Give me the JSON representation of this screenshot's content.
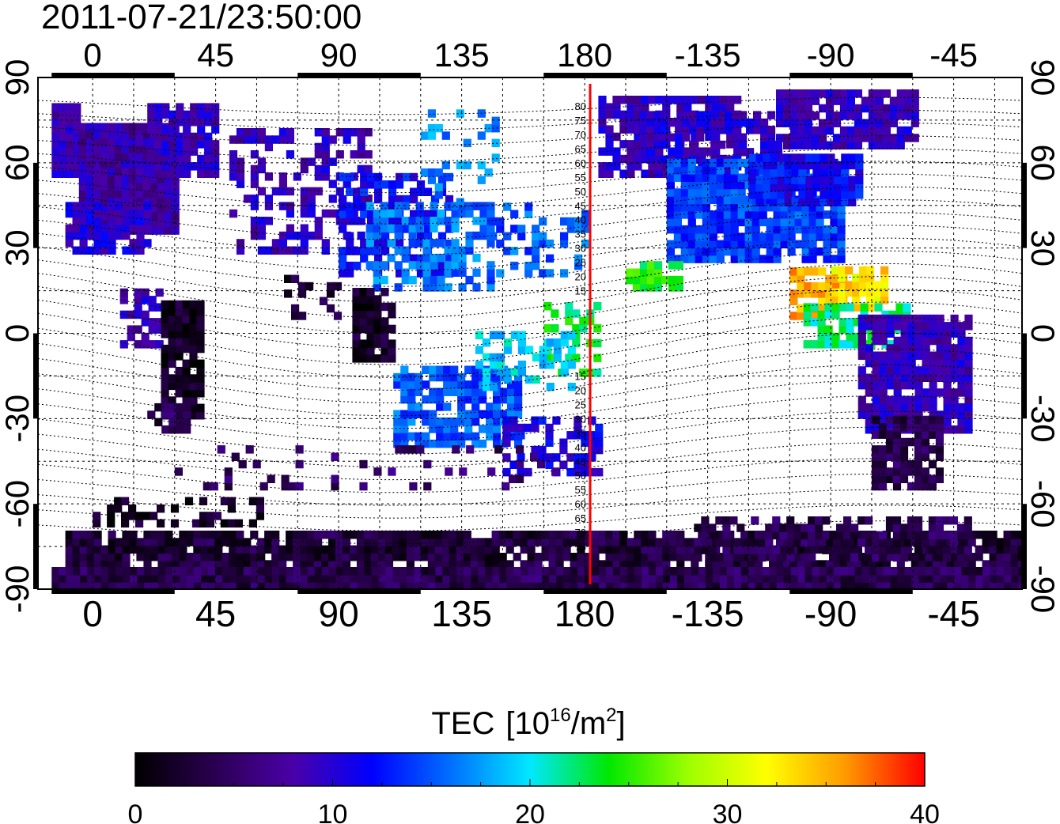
{
  "title": "2011-07-21/23:50:00",
  "map": {
    "lon_ticks": [
      "0",
      "45",
      "90",
      "135",
      "180",
      "-135",
      "-90",
      "-45"
    ],
    "lat_ticks": [
      "90",
      "60",
      "30",
      "0",
      "-30",
      "-60",
      "-90"
    ],
    "lon_range": [
      -20,
      340
    ],
    "lat_range": [
      -90,
      90
    ],
    "meridian_marker": {
      "longitude": 182,
      "color": "#ff0000"
    },
    "meridian_labels": [
      "80",
      "75",
      "70",
      "65",
      "60",
      "55",
      "50",
      "45",
      "40",
      "35",
      "30",
      "25",
      "20",
      "15",
      "15",
      "20",
      "25",
      "30",
      "35",
      "40",
      "45",
      "50",
      "55",
      "60",
      "65",
      "70",
      "75"
    ]
  },
  "colorbar": {
    "label": "TEC",
    "unit_base": "10",
    "unit_exp": "16",
    "unit_tail": "/m",
    "unit_sq": "2",
    "ticks": [
      "0",
      "10",
      "20",
      "30",
      "40"
    ],
    "range": [
      0,
      40
    ],
    "colors": [
      "#000000",
      "#2a0050",
      "#4a00a8",
      "#0000ff",
      "#0070ff",
      "#00e8ff",
      "#00e800",
      "#9cff00",
      "#ffff00",
      "#ff9900",
      "#ff0000"
    ]
  }
}
